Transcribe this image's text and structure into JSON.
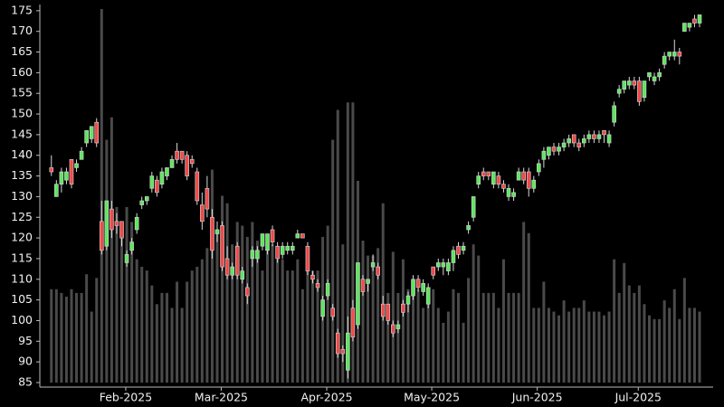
{
  "chart_data": {
    "type": "candlestick",
    "categories": [
      null,
      null,
      null,
      null,
      null,
      null,
      null,
      null,
      null,
      null,
      null,
      null,
      null,
      null,
      null,
      null,
      null,
      null,
      null,
      null,
      null,
      null,
      null,
      null,
      null,
      null,
      null,
      null,
      null,
      null,
      null,
      null,
      null,
      null,
      null,
      null,
      null,
      null,
      null,
      null,
      null,
      null,
      null,
      null,
      null,
      null,
      null,
      null,
      null,
      null,
      null,
      null,
      null,
      null,
      null,
      null,
      null,
      null,
      null,
      null,
      null,
      null,
      null,
      null,
      null,
      null,
      null,
      null,
      null,
      null,
      null,
      null,
      null,
      null,
      null,
      null,
      null,
      null,
      null,
      null,
      null,
      null,
      null,
      null,
      null,
      null,
      null,
      null,
      null,
      null,
      null,
      null,
      null,
      null,
      null,
      null,
      null,
      null,
      null,
      null,
      null,
      null,
      null,
      null,
      null,
      null,
      null,
      null,
      null,
      null,
      null,
      null,
      null,
      null,
      null,
      null,
      null,
      null,
      null,
      null,
      null,
      null,
      null,
      null,
      null,
      null,
      null,
      null,
      null,
      null
    ],
    "open": [
      137,
      130,
      133,
      134,
      139,
      137,
      139,
      143,
      144,
      148,
      124,
      118,
      127,
      124,
      124,
      114,
      117,
      122,
      128,
      129,
      132,
      134,
      133,
      135,
      137,
      141,
      141,
      140,
      139,
      136,
      128,
      132,
      125,
      121,
      123,
      115,
      111,
      118,
      110,
      108,
      115,
      115,
      118,
      117,
      122,
      118,
      116,
      117,
      117,
      120,
      121,
      118,
      111,
      109,
      101,
      106,
      103,
      97,
      93,
      88,
      103,
      99,
      110,
      109,
      113,
      113,
      104,
      104,
      99,
      98,
      104,
      104,
      106,
      110,
      107,
      104,
      113,
      113,
      113,
      112,
      114,
      118,
      117,
      122,
      125,
      133,
      136,
      136,
      133,
      135,
      133,
      130,
      130,
      134,
      136,
      136,
      132,
      136,
      139,
      140,
      142,
      141,
      142,
      143,
      145,
      143,
      143,
      144,
      145,
      144,
      146,
      143,
      148,
      155,
      156,
      157,
      158,
      158,
      154,
      159,
      158,
      159,
      162,
      164,
      164,
      165,
      170,
      171,
      173,
      172
    ],
    "high": [
      140,
      134,
      137,
      137,
      139,
      139,
      142,
      146,
      147,
      149,
      129,
      129,
      129,
      126,
      124,
      117,
      120,
      126,
      130,
      130,
      136,
      135,
      137,
      137,
      140,
      143,
      141,
      141,
      140,
      137,
      131,
      135,
      127,
      124,
      124,
      118,
      114,
      119,
      113,
      109,
      118,
      118,
      121,
      121,
      123,
      119,
      119,
      119,
      119,
      122,
      121,
      119,
      112,
      110,
      106,
      110,
      104,
      98,
      94,
      101,
      105,
      114,
      111,
      110,
      116,
      114,
      106,
      104,
      100,
      100,
      105,
      107,
      111,
      111,
      110,
      109,
      113,
      115,
      115,
      115,
      118,
      119,
      119,
      124,
      130,
      136,
      137,
      136,
      136,
      136,
      134,
      133,
      132,
      137,
      137,
      137,
      135,
      139,
      142,
      142,
      143,
      143,
      144,
      145,
      145,
      144,
      145,
      146,
      146,
      146,
      146,
      146,
      153,
      157,
      158,
      159,
      159,
      159,
      158,
      160,
      160,
      161,
      165,
      165,
      168,
      166,
      172,
      172,
      174,
      174
    ],
    "low": [
      135,
      130,
      131,
      133,
      132,
      136,
      139,
      142,
      143,
      142,
      116,
      117,
      120,
      121,
      118,
      113,
      116,
      121,
      127,
      128,
      131,
      130,
      132,
      134,
      137,
      138,
      138,
      134,
      137,
      128,
      122,
      125,
      115,
      119,
      112,
      110,
      110,
      110,
      109,
      104,
      113,
      114,
      117,
      116,
      118,
      114,
      115,
      116,
      116,
      120,
      120,
      111,
      109,
      107,
      100,
      105,
      100,
      91,
      90,
      86,
      95,
      98,
      106,
      107,
      112,
      110,
      100,
      99,
      96,
      97,
      101,
      102,
      105,
      107,
      106,
      103,
      110,
      112,
      111,
      111,
      112,
      115,
      116,
      121,
      124,
      132,
      134,
      134,
      132,
      132,
      131,
      129,
      129,
      134,
      133,
      130,
      131,
      135,
      137,
      139,
      140,
      140,
      141,
      142,
      142,
      141,
      142,
      143,
      143,
      143,
      143,
      142,
      147,
      154,
      155,
      156,
      156,
      152,
      153,
      158,
      157,
      158,
      161,
      163,
      163,
      162,
      170,
      170,
      171,
      171
    ],
    "close": [
      136,
      133,
      136,
      136,
      133,
      138,
      141,
      146,
      147,
      143,
      117,
      129,
      122,
      123,
      120,
      116,
      119,
      125,
      129,
      130,
      135,
      131,
      136,
      137,
      139,
      139,
      139,
      135,
      138,
      129,
      124,
      127,
      117,
      122,
      113,
      111,
      113,
      111,
      112,
      106,
      117,
      117,
      121,
      121,
      119,
      115,
      118,
      118,
      118,
      121,
      120,
      112,
      110,
      108,
      105,
      109,
      101,
      92,
      92,
      97,
      96,
      114,
      107,
      110,
      114,
      111,
      101,
      100,
      97,
      99,
      102,
      106,
      110,
      108,
      109,
      108,
      111,
      114,
      114,
      114,
      117,
      116,
      118,
      123,
      130,
      135,
      135,
      135,
      136,
      133,
      132,
      132,
      131,
      136,
      134,
      132,
      134,
      138,
      141,
      142,
      141,
      142,
      143,
      144,
      143,
      142,
      144,
      145,
      144,
      145,
      145,
      145,
      152,
      156,
      158,
      158,
      157,
      153,
      158,
      160,
      159,
      160,
      164,
      165,
      165,
      164,
      172,
      172,
      172,
      174
    ],
    "volume": [
      25,
      25,
      24,
      23,
      25,
      24,
      24,
      29,
      19,
      28,
      100,
      65,
      71,
      47,
      39,
      47,
      43,
      33,
      31,
      30,
      26,
      21,
      24,
      24,
      20,
      27,
      20,
      27,
      30,
      31,
      33,
      36,
      57,
      40,
      50,
      48,
      37,
      43,
      42,
      39,
      43,
      38,
      30,
      39,
      37,
      33,
      33,
      30,
      30,
      33,
      25,
      30,
      30,
      30,
      39,
      42,
      65,
      73,
      37,
      75,
      75,
      54,
      38,
      34,
      34,
      36,
      48,
      24,
      35,
      24,
      33,
      25,
      24,
      25,
      20,
      21,
      25,
      20,
      16,
      19,
      25,
      24,
      16,
      28,
      37,
      34,
      24,
      24,
      24,
      20,
      33,
      24,
      24,
      24,
      43,
      40,
      20,
      20,
      27,
      20,
      19,
      18,
      22,
      19,
      20,
      20,
      22,
      19,
      19,
      19,
      18,
      19,
      33,
      24,
      32,
      26,
      24,
      26,
      21,
      18,
      17,
      17,
      22,
      20,
      25,
      17,
      28,
      20,
      20,
      19
    ],
    "up_color": "#5ee65e",
    "down_color": "#ef4a4a",
    "wick_color": "#d8d8d8",
    "volume_color": "#4a4a4a",
    "xlim": [
      -2.3,
      131.7
    ],
    "xticks": [
      {
        "value": 14.8,
        "label": "Feb-2025"
      },
      {
        "value": 33.8,
        "label": "Mar-2025"
      },
      {
        "value": 54.8,
        "label": "Apr-2025"
      },
      {
        "value": 75.7,
        "label": "May-2025"
      },
      {
        "value": 96.7,
        "label": "Jun-2025"
      },
      {
        "value": 116.8,
        "label": "Jul-2025"
      }
    ],
    "ylim": [
      83.9,
      176.5
    ],
    "yticks": [
      85,
      90,
      95,
      100,
      105,
      110,
      115,
      120,
      125,
      130,
      135,
      140,
      145,
      150,
      155,
      160,
      165,
      170,
      175
    ]
  }
}
